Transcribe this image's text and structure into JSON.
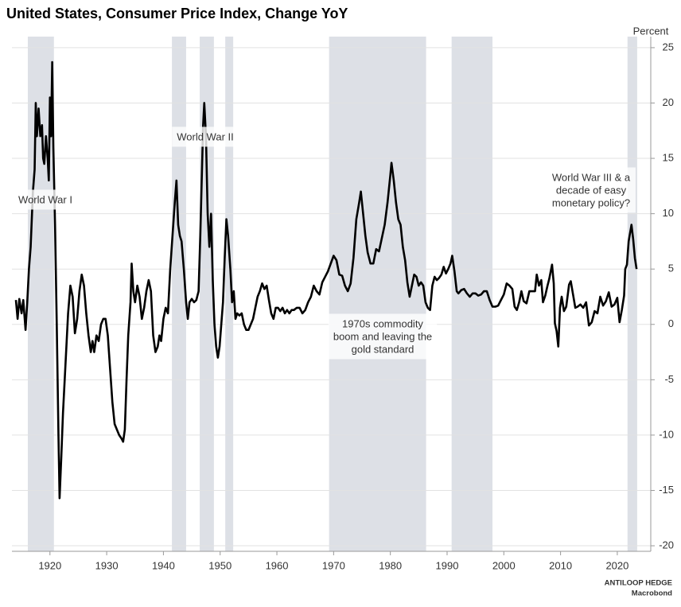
{
  "chart_data": {
    "type": "line",
    "title": "United States, Consumer Price Index, Change YoY",
    "y_axis_label": "Percent",
    "source": [
      "ANTILOOP HEDGE",
      "Macrobond"
    ],
    "xlim": [
      1913.3,
      2025.9
    ],
    "xticks": [
      1920,
      1930,
      1940,
      1950,
      1960,
      1970,
      1980,
      1990,
      2000,
      2010,
      2020
    ],
    "ylim": [
      -20.5,
      26
    ],
    "yticks": [
      -20,
      -15,
      -10,
      -5,
      0,
      5,
      10,
      15,
      20,
      25
    ],
    "grid": true,
    "shaded_regions": [
      {
        "start": 1916.1,
        "end": 1920.7
      },
      {
        "start": 1941.5,
        "end": 1944.0
      },
      {
        "start": 1946.4,
        "end": 1948.9
      },
      {
        "start": 1950.9,
        "end": 1952.3
      },
      {
        "start": 1969.2,
        "end": 1986.3
      },
      {
        "start": 1990.8,
        "end": 1998.0
      },
      {
        "start": 2021.8,
        "end": 2023.5
      }
    ],
    "shade_color": "#dde0e6",
    "annotations": [
      {
        "lines": [
          "World War I"
        ]
      },
      {
        "lines": [
          "World War II"
        ]
      },
      {
        "lines": [
          "1970s commodity",
          "boom and leaving the",
          "gold standard"
        ]
      },
      {
        "lines": [
          "World War III & a",
          "decade of easy",
          "monetary policy?"
        ]
      }
    ],
    "series": [
      {
        "color": "#000000",
        "x": [
          1914.0,
          1914.3,
          1914.6,
          1915.0,
          1915.3,
          1915.7,
          1916.0,
          1916.3,
          1916.6,
          1917.0,
          1917.3,
          1917.5,
          1917.7,
          1918.0,
          1918.3,
          1918.6,
          1918.8,
          1919.0,
          1919.3,
          1919.6,
          1919.8,
          1920.0,
          1920.2,
          1920.4,
          1920.6,
          1920.9,
          1921.2,
          1921.5,
          1921.7,
          1922.0,
          1922.3,
          1922.6,
          1922.9,
          1923.2,
          1923.6,
          1924.0,
          1924.4,
          1924.8,
          1925.2,
          1925.6,
          1926.0,
          1926.4,
          1926.8,
          1927.2,
          1927.5,
          1927.8,
          1928.2,
          1928.6,
          1929.0,
          1929.4,
          1929.8,
          1930.2,
          1930.6,
          1931.0,
          1931.4,
          1931.8,
          1932.2,
          1932.6,
          1932.9,
          1933.2,
          1933.5,
          1933.8,
          1934.2,
          1934.4,
          1934.7,
          1935.0,
          1935.4,
          1935.8,
          1936.2,
          1936.6,
          1937.0,
          1937.4,
          1937.8,
          1938.2,
          1938.6,
          1939.0,
          1939.3,
          1939.6,
          1940.0,
          1940.4,
          1940.8,
          1941.2,
          1941.6,
          1942.0,
          1942.3,
          1942.6,
          1942.9,
          1943.2,
          1943.6,
          1944.0,
          1944.3,
          1944.6,
          1945.0,
          1945.4,
          1945.8,
          1946.2,
          1946.5,
          1946.8,
          1947.0,
          1947.2,
          1947.5,
          1947.8,
          1948.1,
          1948.4,
          1948.7,
          1949.0,
          1949.3,
          1949.6,
          1949.9,
          1950.2,
          1950.5,
          1950.8,
          1951.1,
          1951.4,
          1951.8,
          1952.1,
          1952.4,
          1952.7,
          1953.0,
          1953.4,
          1953.8,
          1954.2,
          1954.6,
          1955.0,
          1955.4,
          1955.8,
          1956.2,
          1956.6,
          1957.0,
          1957.4,
          1957.8,
          1958.2,
          1958.6,
          1959.0,
          1959.4,
          1959.8,
          1960.2,
          1960.6,
          1961.0,
          1961.4,
          1961.8,
          1962.2,
          1962.6,
          1963.0,
          1963.5,
          1964.0,
          1964.5,
          1965.0,
          1965.5,
          1966.0,
          1966.5,
          1967.0,
          1967.5,
          1968.0,
          1968.5,
          1969.0,
          1969.5,
          1970.0,
          1970.5,
          1971.0,
          1971.5,
          1972.0,
          1972.5,
          1973.0,
          1973.5,
          1974.0,
          1974.5,
          1974.8,
          1975.2,
          1975.6,
          1976.0,
          1976.5,
          1977.0,
          1977.5,
          1978.0,
          1978.5,
          1979.0,
          1979.5,
          1980.0,
          1980.2,
          1980.6,
          1981.0,
          1981.4,
          1981.8,
          1982.2,
          1982.6,
          1983.0,
          1983.4,
          1983.8,
          1984.2,
          1984.6,
          1985.0,
          1985.4,
          1985.8,
          1986.2,
          1986.6,
          1987.0,
          1987.4,
          1987.8,
          1988.2,
          1988.6,
          1989.0,
          1989.4,
          1989.8,
          1990.2,
          1990.6,
          1990.9,
          1991.3,
          1991.7,
          1992.0,
          1992.5,
          1993.0,
          1993.5,
          1994.0,
          1994.5,
          1995.0,
          1995.5,
          1996.0,
          1996.5,
          1997.0,
          1997.5,
          1998.0,
          1998.5,
          1999.0,
          1999.5,
          2000.0,
          2000.5,
          2001.0,
          2001.5,
          2001.9,
          2002.3,
          2002.7,
          2003.1,
          2003.5,
          2004.0,
          2004.5,
          2005.0,
          2005.5,
          2005.8,
          2006.2,
          2006.6,
          2006.9,
          2007.3,
          2007.7,
          2008.0,
          2008.5,
          2008.8,
          2009.0,
          2009.3,
          2009.6,
          2009.9,
          2010.2,
          2010.6,
          2011.0,
          2011.5,
          2011.8,
          2012.2,
          2012.6,
          2013.0,
          2013.5,
          2014.0,
          2014.5,
          2015.0,
          2015.5,
          2016.0,
          2016.5,
          2017.0,
          2017.5,
          2018.0,
          2018.5,
          2019.0,
          2019.5,
          2020.0,
          2020.4,
          2020.8,
          2021.2,
          2021.4,
          2021.7,
          2022.0,
          2022.5,
          2022.8,
          2023.1,
          2023.4
        ],
        "values": [
          2.2,
          0.5,
          2.3,
          1.0,
          2.2,
          -0.5,
          2.0,
          5,
          7,
          12,
          14,
          20,
          17,
          19.5,
          17,
          18,
          15,
          14.5,
          17,
          15,
          13,
          20.5,
          17,
          23.7,
          16,
          9,
          0,
          -10,
          -15.7,
          -12,
          -8,
          -5,
          -2,
          1,
          3.5,
          2.5,
          -0.8,
          0.5,
          3,
          4.5,
          3.5,
          1,
          -1,
          -2.5,
          -1.5,
          -2.5,
          -1,
          -1.5,
          0,
          0.5,
          0.5,
          -1,
          -4,
          -7,
          -9,
          -9.5,
          -10,
          -10.3,
          -10.6,
          -9.5,
          -5,
          -1,
          2,
          5.5,
          3,
          2,
          3.5,
          2.5,
          0.5,
          1.5,
          3,
          4,
          3,
          -1,
          -2.5,
          -2,
          -1,
          -1.5,
          0.5,
          1.5,
          1,
          5,
          8,
          11,
          13,
          9,
          8,
          7.5,
          5,
          2,
          0.5,
          2,
          2.3,
          2,
          2.2,
          3,
          8,
          14,
          18,
          20,
          17,
          10,
          7,
          10,
          4,
          0,
          -2,
          -3,
          -2,
          0,
          2,
          6,
          9.5,
          8,
          5,
          2,
          3,
          0.5,
          1,
          0.8,
          1,
          0,
          -0.5,
          -0.5,
          0,
          0.5,
          1.5,
          2.5,
          3,
          3.7,
          3.2,
          3.5,
          2.2,
          1,
          0.5,
          1.5,
          1.5,
          1.2,
          1.5,
          1,
          1.3,
          1,
          1.3,
          1.3,
          1.5,
          1.5,
          1,
          1.3,
          2,
          2.5,
          3.5,
          3,
          2.7,
          3.8,
          4.3,
          4.8,
          5.5,
          6.2,
          5.8,
          4.5,
          4.4,
          3.5,
          3,
          3.7,
          6,
          9.5,
          11,
          12,
          10,
          8,
          6.5,
          5.5,
          5.5,
          6.8,
          6.6,
          7.8,
          9,
          11,
          13.5,
          14.6,
          13,
          11,
          9.5,
          9,
          7,
          5.8,
          3.8,
          2.5,
          3.5,
          4.5,
          4.3,
          3.5,
          3.8,
          3.5,
          2,
          1.5,
          1.3,
          3.5,
          4.3,
          4,
          4.2,
          4.5,
          5.2,
          4.6,
          5,
          5.5,
          6.2,
          4.8,
          3,
          2.8,
          3.1,
          3.2,
          2.8,
          2.5,
          2.8,
          2.8,
          2.6,
          2.7,
          3,
          3,
          2.2,
          1.6,
          1.6,
          1.7,
          2.2,
          2.7,
          3.7,
          3.5,
          3.2,
          1.6,
          1.3,
          2,
          3,
          2.1,
          1.9,
          3,
          3,
          3,
          4.5,
          3.5,
          4,
          2,
          2.6,
          3.5,
          4.1,
          5.4,
          3.7,
          0.1,
          -0.6,
          -2,
          1.5,
          2.5,
          1.2,
          1.6,
          3.6,
          3.9,
          2.7,
          1.5,
          1.6,
          1.8,
          1.5,
          2,
          -0.1,
          0.2,
          1.2,
          1,
          2.5,
          1.7,
          2.1,
          2.9,
          1.6,
          1.8,
          2.4,
          0.2,
          1.3,
          2.6,
          5,
          5.4,
          7.5,
          9,
          7.7,
          6,
          5
        ]
      }
    ]
  }
}
